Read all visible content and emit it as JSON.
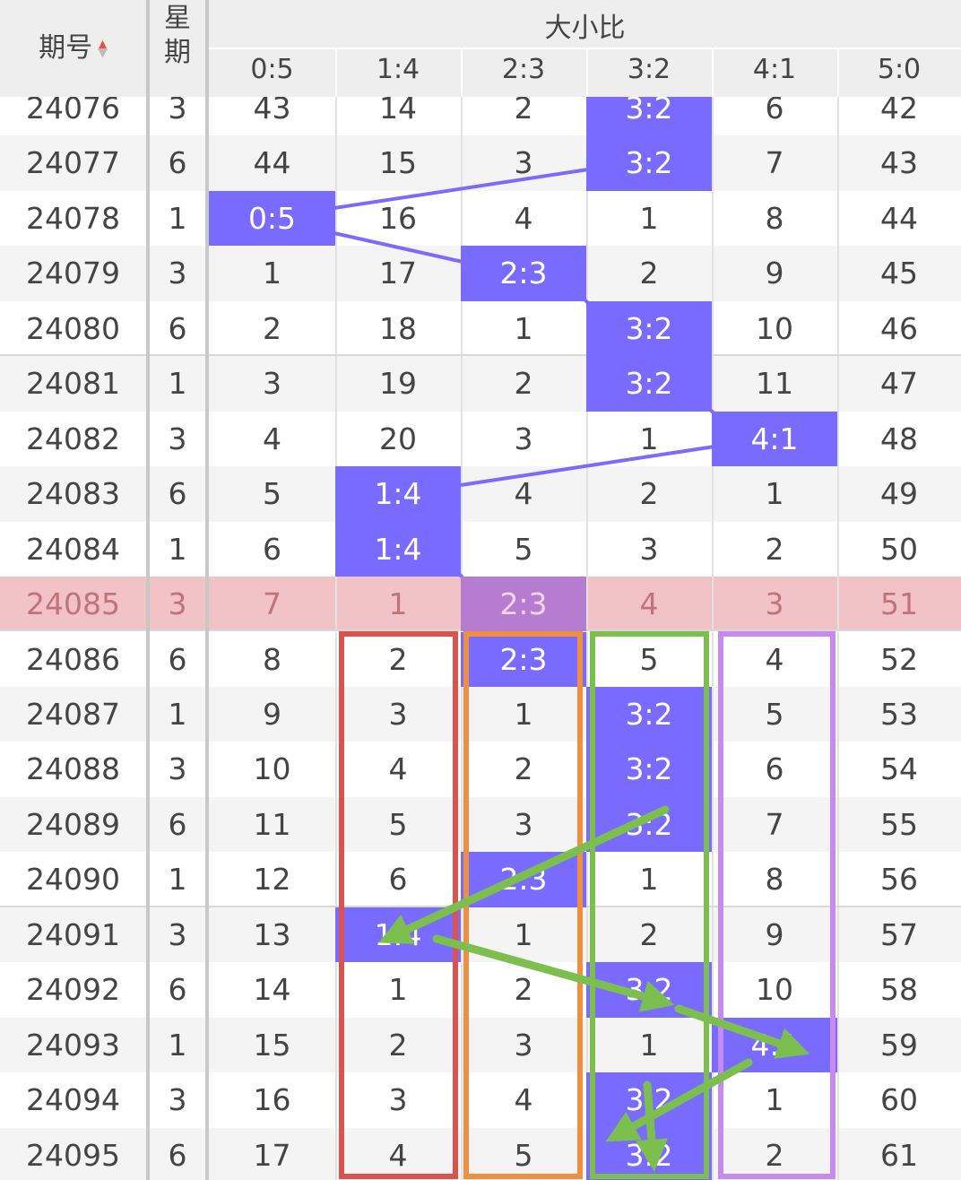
{
  "header": {
    "period": "期号",
    "weekday": "星期",
    "group": "大小比",
    "columns": [
      "0:5",
      "1:4",
      "2:3",
      "3:2",
      "4:1",
      "5:0"
    ]
  },
  "rows": [
    {
      "period": "24076",
      "weekday": 3,
      "cells": [
        43,
        14,
        2,
        "3:2",
        6,
        42
      ]
    },
    {
      "period": "24077",
      "weekday": 6,
      "cells": [
        44,
        15,
        3,
        "3:2",
        7,
        43
      ]
    },
    {
      "period": "24078",
      "weekday": 1,
      "cells": [
        "0:5",
        16,
        4,
        1,
        8,
        44
      ]
    },
    {
      "period": "24079",
      "weekday": 3,
      "cells": [
        1,
        17,
        "2:3",
        2,
        9,
        45
      ]
    },
    {
      "period": "24080",
      "weekday": 6,
      "cells": [
        2,
        18,
        1,
        "3:2",
        10,
        46
      ]
    },
    {
      "period": "24081",
      "weekday": 1,
      "cells": [
        3,
        19,
        2,
        "3:2",
        11,
        47
      ]
    },
    {
      "period": "24082",
      "weekday": 3,
      "cells": [
        4,
        20,
        3,
        1,
        "4:1",
        48
      ]
    },
    {
      "period": "24083",
      "weekday": 6,
      "cells": [
        5,
        "1:4",
        4,
        2,
        1,
        49
      ]
    },
    {
      "period": "24084",
      "weekday": 1,
      "cells": [
        6,
        "1:4",
        5,
        3,
        2,
        50
      ]
    },
    {
      "period": "24085",
      "weekday": 3,
      "cells": [
        7,
        1,
        "2:3",
        4,
        3,
        51
      ]
    },
    {
      "period": "24086",
      "weekday": 6,
      "cells": [
        8,
        2,
        "2:3",
        5,
        4,
        52
      ]
    },
    {
      "period": "24087",
      "weekday": 1,
      "cells": [
        9,
        3,
        1,
        "3:2",
        5,
        53
      ]
    },
    {
      "period": "24088",
      "weekday": 3,
      "cells": [
        10,
        4,
        2,
        "3:2",
        6,
        54
      ]
    },
    {
      "period": "24089",
      "weekday": 6,
      "cells": [
        11,
        5,
        3,
        "3:2",
        7,
        55
      ]
    },
    {
      "period": "24090",
      "weekday": 1,
      "cells": [
        12,
        6,
        "2:3",
        1,
        8,
        56
      ]
    },
    {
      "period": "24091",
      "weekday": 3,
      "cells": [
        13,
        "1:4",
        1,
        2,
        9,
        57
      ]
    },
    {
      "period": "24092",
      "weekday": 6,
      "cells": [
        14,
        1,
        2,
        "3:2",
        10,
        58
      ]
    },
    {
      "period": "24093",
      "weekday": 1,
      "cells": [
        15,
        2,
        3,
        1,
        "4:1",
        59
      ]
    },
    {
      "period": "24094",
      "weekday": 3,
      "cells": [
        16,
        3,
        4,
        "3:2",
        1,
        60
      ]
    },
    {
      "period": "24095",
      "weekday": 6,
      "cells": [
        17,
        4,
        5,
        "3:2",
        2,
        61
      ]
    }
  ]
}
